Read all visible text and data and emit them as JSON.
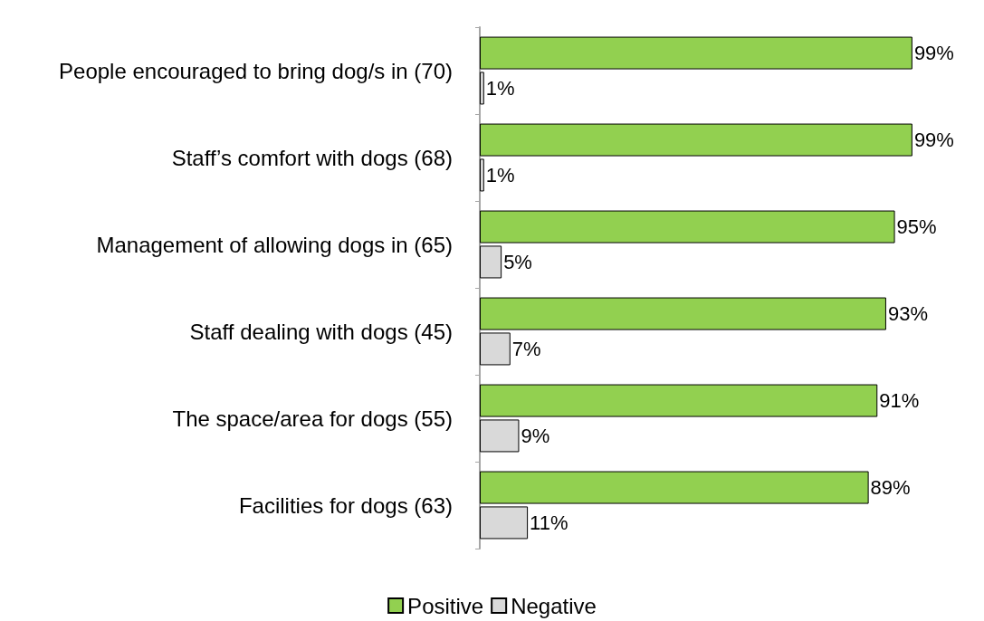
{
  "chart_data": {
    "type": "bar",
    "orientation": "horizontal",
    "categories": [
      "People encouraged to bring dog/s in (70)",
      "Staff’s comfort with dogs (68)",
      "Management of allowing dogs in (65)",
      "Staff dealing with dogs (45)",
      "The space/area for dogs (55)",
      "Facilities for dogs (63)"
    ],
    "series": [
      {
        "name": "Positive",
        "color": "#92d050",
        "values": [
          99,
          99,
          95,
          93,
          91,
          89
        ],
        "value_labels": [
          "99%",
          "99%",
          "95%",
          "93%",
          "91%",
          "89%"
        ]
      },
      {
        "name": "Negative",
        "color": "#d9d9d9",
        "values": [
          1,
          1,
          5,
          7,
          9,
          11
        ],
        "value_labels": [
          "1%",
          "1%",
          "5%",
          "7%",
          "9%",
          "11%"
        ]
      }
    ],
    "legend": "bottom"
  }
}
